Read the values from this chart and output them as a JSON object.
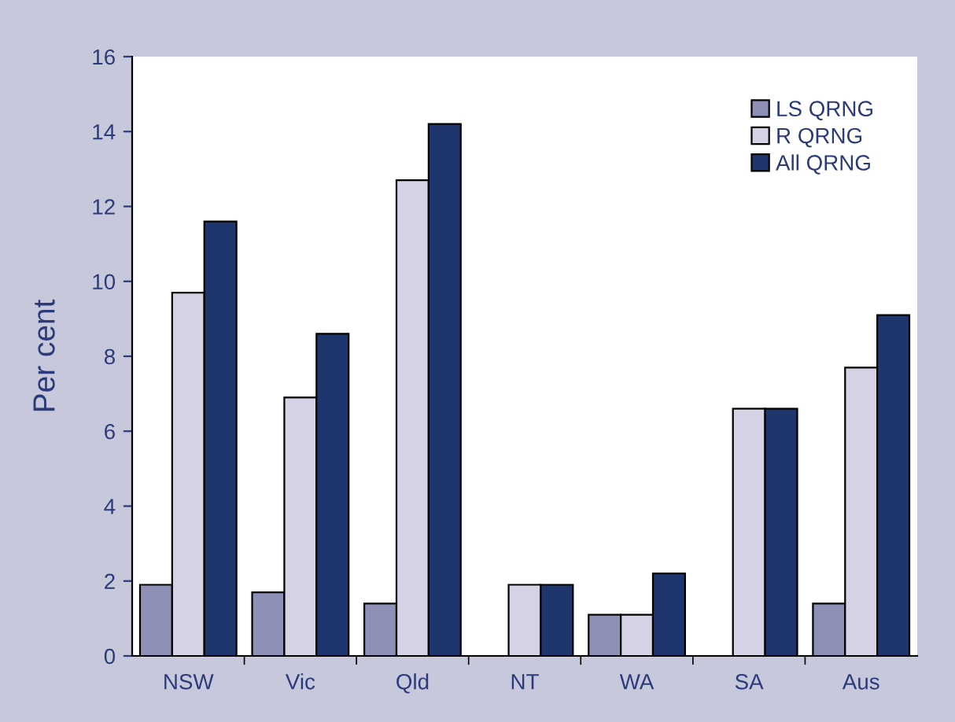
{
  "chart_data": {
    "type": "bar",
    "ylabel": "Per cent",
    "categories": [
      "NSW",
      "Vic",
      "Qld",
      "NT",
      "WA",
      "SA",
      "Aus"
    ],
    "series": [
      {
        "name": "LS QRNG",
        "color": "#8e90b8",
        "values": [
          1.9,
          1.7,
          1.4,
          null,
          1.1,
          null,
          1.4
        ]
      },
      {
        "name": "R QRNG",
        "color": "#d4d2e4",
        "values": [
          9.7,
          6.9,
          12.7,
          1.9,
          1.1,
          6.6,
          7.7
        ]
      },
      {
        "name": "All QRNG",
        "color": "#1f356e",
        "values": [
          11.6,
          8.6,
          14.2,
          1.9,
          2.2,
          6.6,
          9.1
        ]
      }
    ],
    "ylim": [
      0,
      16
    ],
    "yticks": [
      0,
      2,
      4,
      6,
      8,
      10,
      12,
      14,
      16
    ],
    "grid": false,
    "legend": "top right"
  }
}
